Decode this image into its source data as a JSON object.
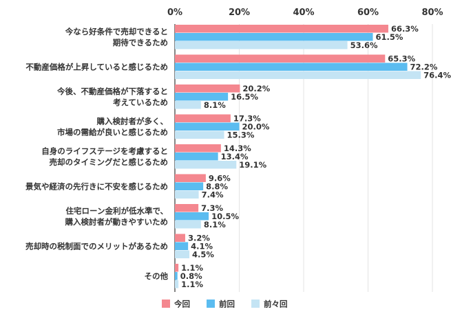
{
  "chart_data": {
    "type": "bar",
    "orientation": "horizontal",
    "title": "",
    "xlabel": "",
    "ylabel": "",
    "xlim": [
      0,
      80
    ],
    "x_ticks": [
      "0%",
      "20%",
      "40%",
      "60%",
      "80%"
    ],
    "x_tick_values": [
      0,
      20,
      40,
      60,
      80
    ],
    "grid": true,
    "legend_position": "bottom",
    "value_suffix": "%",
    "categories": [
      [
        "今なら好条件で売却できると",
        "期待できるため"
      ],
      [
        "不動産価格が上昇していると感じるため"
      ],
      [
        "今後、不動産価格が下落すると",
        "考えているため"
      ],
      [
        "購入検討者が多く、",
        "市場の需給が良いと感じるため"
      ],
      [
        "自身のライフステージを考慮すると",
        "売却のタイミングだと感じるため"
      ],
      [
        "景気や経済の先行きに不安を感じるため"
      ],
      [
        "住宅ローン金利が低水準で、",
        "購入検討者が動きやすいため"
      ],
      [
        "売却時の税制面でのメリットがあるため"
      ],
      [
        "その他"
      ]
    ],
    "series": [
      {
        "name": "今回",
        "color": "#f4878f",
        "values": [
          66.3,
          65.3,
          20.2,
          17.3,
          14.3,
          9.6,
          7.3,
          3.2,
          1.1
        ]
      },
      {
        "name": "前回",
        "color": "#5bbcf0",
        "values": [
          61.5,
          72.2,
          16.5,
          20.0,
          13.4,
          8.8,
          10.5,
          4.1,
          0.8
        ]
      },
      {
        "name": "前々回",
        "color": "#c4e4f4",
        "values": [
          53.6,
          76.4,
          8.1,
          15.3,
          19.1,
          7.4,
          8.1,
          4.5,
          1.1
        ]
      }
    ]
  }
}
